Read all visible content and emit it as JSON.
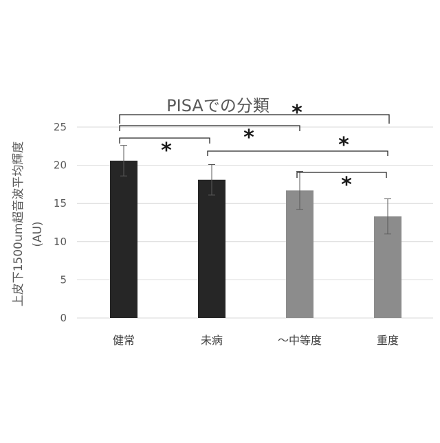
{
  "chart_data": {
    "type": "bar",
    "title": "PISAでの分類",
    "ylabel": "上皮下1500um超音波平均輝度",
    "ylabel_unit": "(AU)",
    "xlabel": "",
    "ylim": [
      0,
      25
    ],
    "yticks": [
      "0",
      "5",
      "10",
      "15",
      "20",
      "25"
    ],
    "grid": true,
    "categories": [
      "健常",
      "未病",
      "～中等度",
      "重度"
    ],
    "values": [
      20.6,
      18.1,
      16.7,
      13.3
    ],
    "error": [
      2.0,
      2.0,
      2.5,
      2.3
    ],
    "bar_colors": [
      "#262626",
      "#262626",
      "#8c8c8c",
      "#8c8c8c"
    ],
    "significance": [
      {
        "from": 0,
        "to": 3,
        "label": "*"
      },
      {
        "from": 0,
        "to": 2,
        "label": "*"
      },
      {
        "from": 0,
        "to": 1,
        "label": "*"
      },
      {
        "from": 1,
        "to": 3,
        "label": "*"
      },
      {
        "from": 2,
        "to": 3,
        "label": "*"
      }
    ]
  }
}
